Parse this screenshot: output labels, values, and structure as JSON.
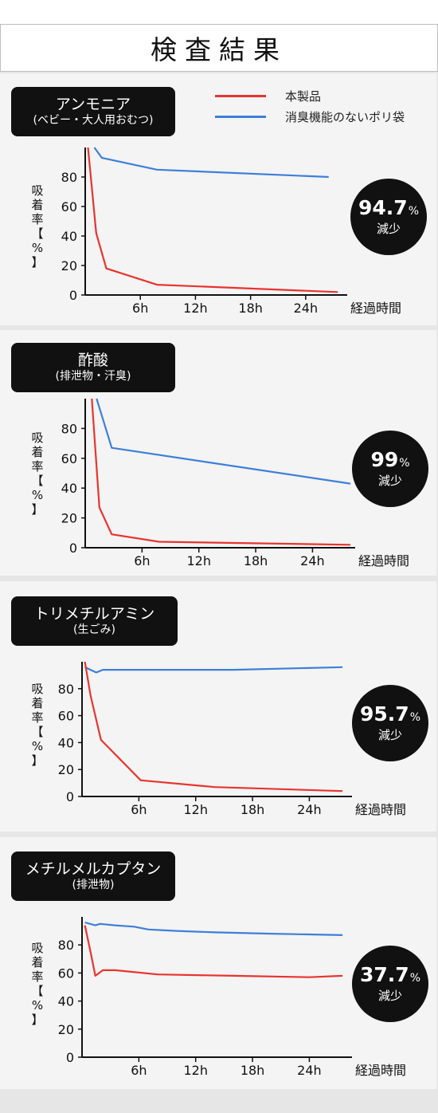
{
  "title": "検査結果",
  "legend": [
    {
      "name": "本製品",
      "color": "#e8342f"
    },
    {
      "name": "消臭機能のないポリ袋",
      "color": "#3e7fd9"
    }
  ],
  "ylabel_chars": [
    "吸",
    "着",
    "率",
    "【",
    "%",
    "】"
  ],
  "chart_data": [
    {
      "type": "line",
      "label_line1": "アンモニア",
      "label_line2": "(ベビー・大人用おむつ)",
      "badge_value": "94.7",
      "badge_unit": "%",
      "badge_sub": "減少",
      "xlabel": "経過時間",
      "xticks": [
        "6h",
        "12h",
        "18h",
        "24h"
      ],
      "yticks": [
        0,
        20,
        40,
        60,
        80
      ],
      "ylim": [
        0,
        100
      ],
      "xlim": [
        0,
        28
      ],
      "series": [
        {
          "name": "本製品",
          "color": "#e8342f",
          "x": [
            0.3,
            1.2,
            2.3,
            7.8,
            27.5
          ],
          "y": [
            100,
            42,
            18,
            7,
            2
          ]
        },
        {
          "name": "消臭機能のないポリ袋",
          "color": "#3e7fd9",
          "x": [
            1.0,
            1.8,
            7.8,
            26.5
          ],
          "y": [
            100,
            93,
            85,
            80
          ]
        }
      ]
    },
    {
      "type": "line",
      "label_line1": "酢酸",
      "label_line2": "(排泄物・汗臭)",
      "badge_value": "99",
      "badge_unit": "%",
      "badge_sub": "減少",
      "xlabel": "経過時間",
      "xticks": [
        "6h",
        "12h",
        "18h",
        "24h"
      ],
      "yticks": [
        0,
        20,
        40,
        60,
        80
      ],
      "ylim": [
        0,
        100
      ],
      "xlim": [
        0,
        28
      ],
      "series": [
        {
          "name": "本製品",
          "color": "#e8342f",
          "x": [
            0.7,
            1.5,
            2.8,
            7.8,
            28
          ],
          "y": [
            100,
            27,
            9,
            4,
            2
          ]
        },
        {
          "name": "消臭機能のないポリ袋",
          "color": "#3e7fd9",
          "x": [
            1.2,
            2.8,
            28
          ],
          "y": [
            100,
            67,
            43
          ]
        }
      ]
    },
    {
      "type": "line",
      "label_line1": "トリメチルアミン",
      "label_line2": "(生ごみ)",
      "badge_value": "95.7",
      "badge_unit": "%",
      "badge_sub": "減少",
      "xlabel": "経過時間",
      "xticks": [
        "6h",
        "12h",
        "18h",
        "24h"
      ],
      "yticks": [
        0,
        20,
        40,
        60,
        80
      ],
      "ylim": [
        0,
        100
      ],
      "xlim": [
        0,
        28
      ],
      "series": [
        {
          "name": "本製品",
          "color": "#e8342f",
          "x": [
            0.3,
            0.9,
            2.0,
            6.2,
            14,
            27.5
          ],
          "y": [
            100,
            75,
            42,
            12,
            7,
            4
          ]
        },
        {
          "name": "消臭機能のないポリ袋",
          "color": "#3e7fd9",
          "x": [
            0.3,
            1.5,
            2.2,
            8,
            16,
            27.5
          ],
          "y": [
            96,
            92,
            94,
            94,
            94,
            96
          ]
        }
      ]
    },
    {
      "type": "line",
      "label_line1": "メチルメルカプタン",
      "label_line2": "(排泄物)",
      "badge_value": "37.7",
      "badge_unit": "%",
      "badge_sub": "減少",
      "xlabel": "経過時間",
      "xticks": [
        "6h",
        "12h",
        "18h",
        "24h"
      ],
      "yticks": [
        0,
        20,
        40,
        60,
        80
      ],
      "ylim": [
        0,
        100
      ],
      "xlim": [
        0,
        28
      ],
      "series": [
        {
          "name": "本製品",
          "color": "#e8342f",
          "x": [
            0.3,
            0.9,
            1.4,
            2.2,
            3.5,
            8,
            16,
            24,
            27.5
          ],
          "y": [
            94,
            75,
            58,
            62,
            62,
            59,
            58,
            57,
            58
          ]
        },
        {
          "name": "消臭機能のないポリ袋",
          "color": "#3e7fd9",
          "x": [
            0.3,
            1.4,
            1.9,
            3.5,
            5.5,
            7,
            10,
            14,
            20,
            27.5
          ],
          "y": [
            96,
            94,
            95,
            94,
            93,
            91,
            90,
            89,
            88,
            87
          ]
        }
      ]
    }
  ]
}
